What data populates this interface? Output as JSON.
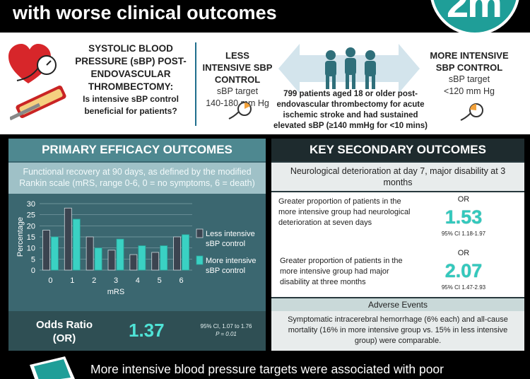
{
  "header": {
    "title": "with worse clinical outcomes"
  },
  "logo": {
    "text": "2m",
    "color": "#1f9e98"
  },
  "top": {
    "question_line1": "SYSTOLIC BLOOD PRESSURE (sBP) POST-ENDOVASCULAR THROMBECTOMY:",
    "question_line2": "Is intensive sBP control beneficial for patients?",
    "less": {
      "title": "LESS INTENSIVE SBP CONTROL",
      "target_label": "sBP target",
      "target_value": "140-180 mm Hg"
    },
    "more": {
      "title": "MORE INTENSIVE SBP CONTROL",
      "target_label": "sBP target",
      "target_value": "<120 mm Hg"
    },
    "population": "799 patients aged 18 or older post-endovascular thrombectomy for acute ischemic stroke and had sustained elevated sBP (≥140 mmHg for <10 mins)",
    "icons": [
      "heart-bp-monitor-icon",
      "artery-catheter-icon",
      "people-group-icon",
      "gauge-icon"
    ]
  },
  "efficacy": {
    "heading": "PRIMARY EFFICACY OUTCOMES",
    "description": "Functional recovery at 90 days, as defined by the modified Rankin scale (mRS, range 0-6, 0 = no symptoms, 6 = death)",
    "or_label": "Odds Ratio (OR)",
    "or_value": "1.37",
    "or_ci": "95% CI, 1.07 to 1.76",
    "or_p": "P = 0.01"
  },
  "chart_data": {
    "type": "bar",
    "categories": [
      "0",
      "1",
      "2",
      "3",
      "4",
      "5",
      "6"
    ],
    "series": [
      {
        "name": "Less intensive sBP control",
        "values": [
          18,
          28,
          15,
          9,
          7,
          8,
          15
        ],
        "color": "#3b4450"
      },
      {
        "name": "More intensive sBP control",
        "values": [
          15,
          23,
          10,
          14,
          11,
          11,
          16
        ],
        "color": "#3ad1c3"
      }
    ],
    "xlabel": "mRS",
    "ylabel": "Percentage",
    "ylim": [
      0,
      30
    ],
    "yticks": [
      0,
      5,
      10,
      15,
      20,
      25,
      30
    ],
    "grid": true,
    "legend_position": "right"
  },
  "secondary": {
    "heading": "KEY SECONDARY OUTCOMES",
    "description": "Neurological deterioration at day 7, major disability at 3 months",
    "items": [
      {
        "text": "Greater proportion of patients in the more intensive group had neurological deterioration at seven days",
        "or_label": "OR",
        "value": "1.53",
        "ci": "95% CI 1.18-1.97"
      },
      {
        "text": "Greater proportion of patients in the more intensive group had major disability at three months",
        "or_label": "OR",
        "value": "2.07",
        "ci": "95% CI 1.47-2.93"
      }
    ],
    "adverse_heading": "Adverse Events",
    "adverse_text": "Symptomatic intracerebral hemorrhage (6% each) and all-cause mortality (16% in more intensive group vs. 15% in less intensive group) were comparable."
  },
  "conclusion": {
    "text": "More intensive blood pressure targets were associated with poor"
  }
}
